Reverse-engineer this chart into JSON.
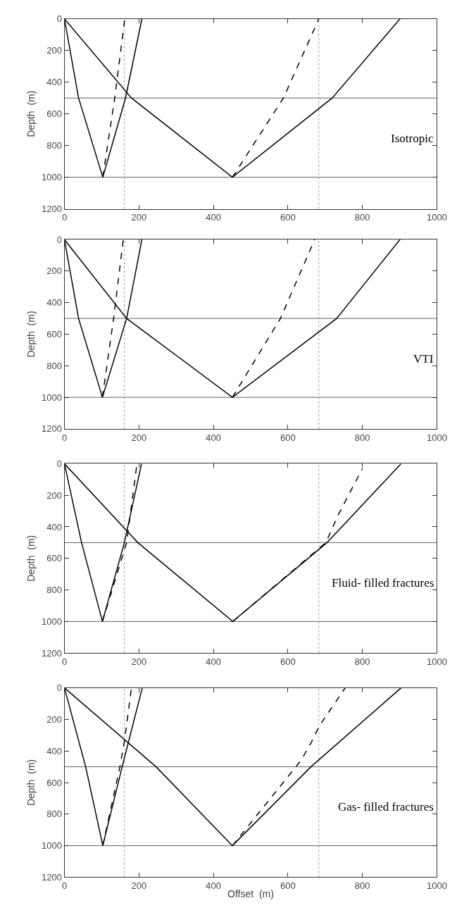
{
  "chart_data": [
    {
      "type": "line",
      "ylabel": "Depth  (m)",
      "xlim": [
        0,
        1000
      ],
      "ylim": [
        1200,
        0
      ],
      "xticks": [
        0,
        200,
        400,
        600,
        800,
        1000
      ],
      "yticks": [
        0,
        200,
        400,
        600,
        800,
        1000,
        1200
      ],
      "grid": false,
      "annotations": [
        "Isotropic"
      ],
      "series": [
        {
          "color": "#000000",
          "line_style": "solid",
          "x": [
            0,
            38,
            103,
            164,
            208
          ],
          "values": [
            0,
            500,
            1000,
            500,
            0
          ]
        },
        {
          "color": "#000000",
          "line_style": "dashed",
          "x": [
            103,
            135,
            162
          ],
          "values": [
            1000,
            500,
            0
          ]
        },
        {
          "color": "#000000",
          "line_style": "solid",
          "x": [
            0,
            180,
            451,
            719,
            901
          ],
          "values": [
            0,
            500,
            1000,
            500,
            0
          ]
        },
        {
          "color": "#000000",
          "line_style": "dashed",
          "x": [
            451,
            588,
            683
          ],
          "values": [
            1000,
            500,
            0
          ]
        }
      ],
      "ref_lines": [
        {
          "axis": "y",
          "value": 500,
          "color": "#606060",
          "line_style": "solid"
        },
        {
          "axis": "y",
          "value": 1000,
          "color": "#606060",
          "line_style": "solid"
        },
        {
          "axis": "x",
          "value": 161,
          "color": "#999999",
          "line_style": "dotted"
        },
        {
          "axis": "x",
          "value": 683,
          "color": "#999999",
          "line_style": "dotted"
        }
      ]
    },
    {
      "type": "line",
      "ylabel": "Depth  (m)",
      "xlim": [
        0,
        1000
      ],
      "ylim": [
        1200,
        0
      ],
      "xticks": [
        0,
        200,
        400,
        600,
        800,
        1000
      ],
      "yticks": [
        0,
        200,
        400,
        600,
        800,
        1000,
        1200
      ],
      "grid": false,
      "annotations": [
        "VTI"
      ],
      "series": [
        {
          "color": "#000000",
          "line_style": "solid",
          "x": [
            0,
            38,
            102,
            167,
            208
          ],
          "values": [
            0,
            500,
            1000,
            500,
            0
          ]
        },
        {
          "color": "#000000",
          "line_style": "dashed",
          "x": [
            102,
            132,
            158
          ],
          "values": [
            1000,
            500,
            0
          ]
        },
        {
          "color": "#000000",
          "line_style": "solid",
          "x": [
            0,
            167,
            451,
            731,
            901
          ],
          "values": [
            0,
            500,
            1000,
            500,
            0
          ]
        },
        {
          "color": "#000000",
          "line_style": "dashed",
          "x": [
            451,
            580,
            672
          ],
          "values": [
            1000,
            500,
            0
          ]
        }
      ],
      "ref_lines": [
        {
          "axis": "y",
          "value": 500,
          "color": "#606060",
          "line_style": "solid"
        },
        {
          "axis": "y",
          "value": 1000,
          "color": "#606060",
          "line_style": "solid"
        },
        {
          "axis": "x",
          "value": 161,
          "color": "#999999",
          "line_style": "dotted"
        },
        {
          "axis": "x",
          "value": 683,
          "color": "#999999",
          "line_style": "dotted"
        }
      ]
    },
    {
      "type": "line",
      "ylabel": "Depth  (m)",
      "xlim": [
        0,
        1000
      ],
      "ylim": [
        1200,
        0
      ],
      "xticks": [
        0,
        200,
        400,
        600,
        800,
        1000
      ],
      "yticks": [
        0,
        200,
        400,
        600,
        800,
        1000,
        1200
      ],
      "grid": false,
      "annotations": [
        "Fluid- filled fractures"
      ],
      "series": [
        {
          "color": "#000000",
          "line_style": "solid",
          "x": [
            0,
            46,
            102,
            161,
            207
          ],
          "values": [
            0,
            500,
            1000,
            500,
            0
          ]
        },
        {
          "color": "#000000",
          "line_style": "dashed",
          "x": [
            102,
            167,
            194
          ],
          "values": [
            1000,
            500,
            13
          ]
        },
        {
          "color": "#000000",
          "line_style": "solid",
          "x": [
            0,
            197,
            452,
            705,
            904
          ],
          "values": [
            0,
            500,
            1000,
            500,
            0
          ]
        },
        {
          "color": "#000000",
          "line_style": "dashed",
          "x": [
            452,
            702,
            735,
            800
          ],
          "values": [
            1000,
            500,
            325,
            31
          ]
        }
      ],
      "ref_lines": [
        {
          "axis": "y",
          "value": 500,
          "color": "#606060",
          "line_style": "solid"
        },
        {
          "axis": "y",
          "value": 1000,
          "color": "#606060",
          "line_style": "solid"
        },
        {
          "axis": "x",
          "value": 161,
          "color": "#999999",
          "line_style": "dotted"
        },
        {
          "axis": "x",
          "value": 683,
          "color": "#999999",
          "line_style": "dotted"
        }
      ]
    },
    {
      "type": "line",
      "xlabel": "Offset  (m)",
      "ylabel": "Depth  (m)",
      "xlim": [
        0,
        1000
      ],
      "ylim": [
        1200,
        0
      ],
      "xticks": [
        0,
        200,
        400,
        600,
        800,
        1000
      ],
      "yticks": [
        0,
        200,
        400,
        600,
        800,
        1000,
        1200
      ],
      "grid": false,
      "annotations": [
        "Gas- filled fractures"
      ],
      "series": [
        {
          "color": "#000000",
          "line_style": "solid",
          "x": [
            0,
            57,
            103,
            155,
            209
          ],
          "values": [
            0,
            500,
            1000,
            500,
            0
          ]
        },
        {
          "color": "#000000",
          "line_style": "dashed",
          "x": [
            103,
            149,
            161,
            180
          ],
          "values": [
            1000,
            500,
            340,
            0
          ]
        },
        {
          "color": "#000000",
          "line_style": "solid",
          "x": [
            0,
            246,
            451,
            662,
            904
          ],
          "values": [
            0,
            500,
            1000,
            500,
            0
          ]
        },
        {
          "color": "#000000",
          "line_style": "dashed",
          "x": [
            451,
            635,
            662,
            685,
            754
          ],
          "values": [
            1000,
            460,
            349,
            239,
            0
          ]
        }
      ],
      "ref_lines": [
        {
          "axis": "y",
          "value": 500,
          "color": "#606060",
          "line_style": "solid"
        },
        {
          "axis": "y",
          "value": 1000,
          "color": "#606060",
          "line_style": "solid"
        },
        {
          "axis": "x",
          "value": 161,
          "color": "#999999",
          "line_style": "dotted"
        },
        {
          "axis": "x",
          "value": 683,
          "color": "#999999",
          "line_style": "dotted"
        }
      ]
    }
  ]
}
